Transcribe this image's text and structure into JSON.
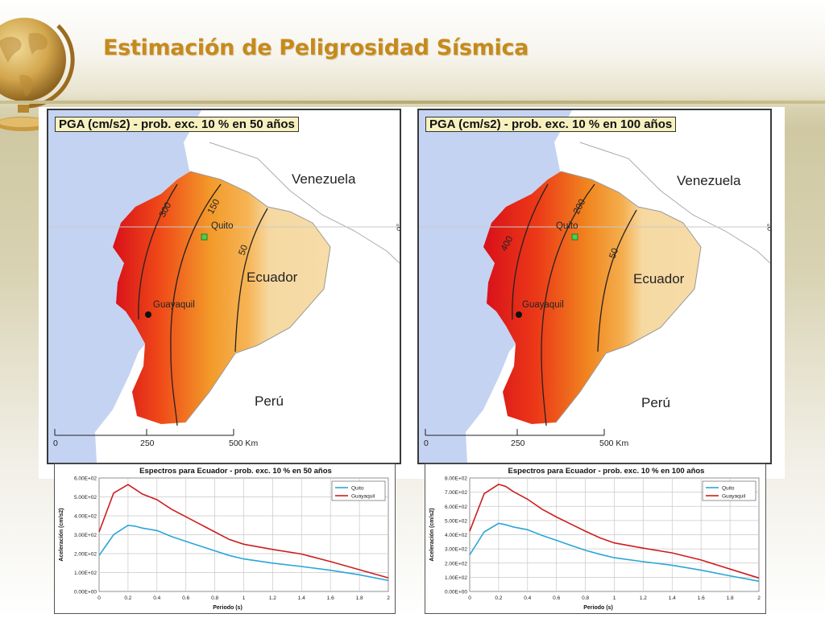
{
  "slide": {
    "title": "Estimación de Peligrosidad Sísmica"
  },
  "maps": [
    {
      "title": "PGA (cm/s2) - prob. exc. 10 % en 50 años",
      "contour_labels": [
        "300",
        "150",
        "50"
      ],
      "countries": {
        "north": "Venezuela",
        "center": "Ecuador",
        "south": "Perú"
      },
      "cities": {
        "capital": "Quito",
        "port": "Guayaquil"
      },
      "latitude_label": "0°",
      "scale": [
        "0",
        "250",
        "500 Km"
      ]
    },
    {
      "title": "PGA (cm/s2) - prob. exc. 10 % en 100 años",
      "contour_labels": [
        "400",
        "200",
        "50"
      ],
      "countries": {
        "north": "Venezuela",
        "center": "Ecuador",
        "south": "Perú"
      },
      "cities": {
        "capital": "Quito",
        "port": "Guayaquil"
      },
      "latitude_label": "0°",
      "scale": [
        "0",
        "250",
        "500 Km"
      ]
    }
  ],
  "colors": {
    "quito": "#2aa6d8",
    "guayaquil": "#cc1f1f",
    "hazard_high": "#d8101a",
    "hazard_mid": "#f39a2a",
    "hazard_low": "#f6d9a2",
    "ocean": "#c5d3f2"
  },
  "chart_data": [
    {
      "type": "line",
      "title": "Espectros para Ecuador - prob. exc. 10 % en 50 años",
      "xlabel": "Periodo (s)",
      "ylabel": "Aceleración (cm/s2)",
      "xlim": [
        0,
        2
      ],
      "ylim": [
        0,
        600
      ],
      "xticks": [
        "0",
        "0.2",
        "0.4",
        "0.6",
        "0.8",
        "1",
        "1.2",
        "1.4",
        "1.6",
        "1.8",
        "2"
      ],
      "yticks": [
        "0.00E+00",
        "1.00E+02",
        "2.00E+02",
        "3.00E+02",
        "4.00E+02",
        "5.00E+02",
        "6.00E+02"
      ],
      "grid": true,
      "legend_position": "top-right",
      "x": [
        0,
        0.1,
        0.2,
        0.25,
        0.3,
        0.4,
        0.5,
        0.6,
        0.7,
        0.8,
        0.9,
        1.0,
        1.2,
        1.4,
        1.6,
        1.8,
        2.0
      ],
      "series": [
        {
          "name": "Quito",
          "color": "#2aa6d8",
          "values": [
            190,
            300,
            350,
            345,
            335,
            322,
            290,
            265,
            240,
            215,
            190,
            172,
            150,
            132,
            112,
            88,
            58
          ]
        },
        {
          "name": "Guayaquil",
          "color": "#cc1f1f",
          "values": [
            315,
            520,
            565,
            540,
            515,
            485,
            435,
            395,
            355,
            315,
            275,
            250,
            222,
            198,
            158,
            115,
            72
          ]
        }
      ]
    },
    {
      "type": "line",
      "title": "Espectros para Ecuador - prob. exc. 10 % en 100 años",
      "xlabel": "Periodo (s)",
      "ylabel": "Aceleración (cm/s2)",
      "xlim": [
        0,
        2
      ],
      "ylim": [
        0,
        800
      ],
      "xticks": [
        "0",
        "0.2",
        "0.4",
        "0.6",
        "0.8",
        "1",
        "1.2",
        "1.4",
        "1.6",
        "1.8",
        "2"
      ],
      "yticks": [
        "0.00E+00",
        "1.00E+02",
        "2.00E+02",
        "3.00E+02",
        "4.00E+02",
        "5.00E+02",
        "6.00E+02",
        "7.00E+02",
        "8.00E+02"
      ],
      "grid": true,
      "legend_position": "top-right",
      "x": [
        0,
        0.1,
        0.2,
        0.25,
        0.3,
        0.4,
        0.5,
        0.6,
        0.7,
        0.8,
        0.9,
        1.0,
        1.2,
        1.4,
        1.6,
        1.8,
        2.0
      ],
      "series": [
        {
          "name": "Quito",
          "color": "#2aa6d8",
          "values": [
            258,
            420,
            480,
            470,
            455,
            435,
            395,
            360,
            325,
            290,
            262,
            238,
            210,
            185,
            150,
            110,
            72
          ]
        },
        {
          "name": "Guayaquil",
          "color": "#cc1f1f",
          "values": [
            425,
            690,
            755,
            740,
            705,
            650,
            580,
            525,
            475,
            425,
            378,
            342,
            305,
            272,
            222,
            158,
            95
          ]
        }
      ]
    }
  ]
}
